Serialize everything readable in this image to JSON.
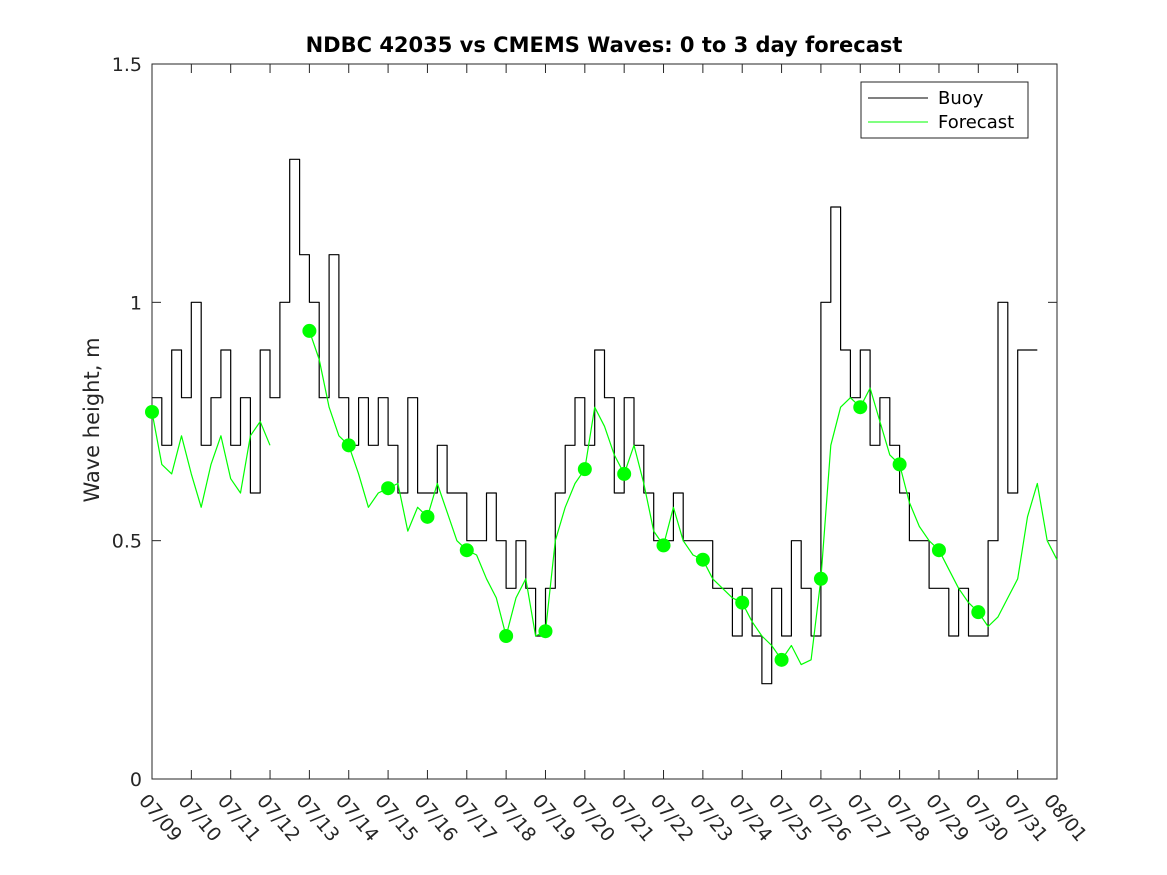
{
  "chart_data": {
    "type": "line",
    "title": "NDBC 42035 vs CMEMS Waves: 0 to 3 day forecast",
    "xlabel": "",
    "ylabel": "Wave height, m",
    "ylim": [
      0,
      1.5
    ],
    "yticks": [
      "0",
      "0.5",
      "1",
      "1.5"
    ],
    "x_range": [
      "07/09",
      "08/01"
    ],
    "xticks": [
      "07/09",
      "07/10",
      "07/11",
      "07/12",
      "07/13",
      "07/14",
      "07/15",
      "07/16",
      "07/17",
      "07/18",
      "07/19",
      "07/20",
      "07/21",
      "07/22",
      "07/23",
      "07/24",
      "07/25",
      "07/26",
      "07/27",
      "07/28",
      "07/29",
      "07/30",
      "07/31",
      "08/01"
    ],
    "grid": false,
    "legend_position": "top-right",
    "legend": [
      "Buoy",
      "Forecast"
    ],
    "colors": {
      "buoy": "#000000",
      "forecast": "#00ff00"
    },
    "series": [
      {
        "name": "Buoy",
        "x": [
          "07/09",
          "07/09 06:00",
          "07/09 12:00",
          "07/09 18:00",
          "07/10",
          "07/10 06:00",
          "07/10 12:00",
          "07/10 18:00",
          "07/11",
          "07/11 06:00",
          "07/11 12:00",
          "07/11 18:00",
          "07/12",
          "07/12 06:00",
          "07/12 12:00",
          "07/12 18:00",
          "07/13",
          "07/13 06:00",
          "07/13 12:00",
          "07/13 18:00",
          "07/14",
          "07/14 06:00",
          "07/14 12:00",
          "07/14 18:00",
          "07/15",
          "07/15 06:00",
          "07/15 12:00",
          "07/15 18:00",
          "07/16",
          "07/16 06:00",
          "07/16 12:00",
          "07/16 18:00",
          "07/17",
          "07/17 06:00",
          "07/17 12:00",
          "07/17 18:00",
          "07/18",
          "07/18 06:00",
          "07/18 12:00",
          "07/18 18:00",
          "07/19",
          "07/19 06:00",
          "07/19 12:00",
          "07/19 18:00",
          "07/20",
          "07/20 06:00",
          "07/20 12:00",
          "07/20 18:00",
          "07/21",
          "07/21 06:00",
          "07/21 12:00",
          "07/21 18:00",
          "07/22",
          "07/22 06:00",
          "07/22 12:00",
          "07/22 18:00",
          "07/23",
          "07/23 06:00",
          "07/23 12:00",
          "07/23 18:00",
          "07/24",
          "07/24 06:00",
          "07/24 12:00",
          "07/24 18:00",
          "07/25",
          "07/25 06:00",
          "07/25 12:00",
          "07/25 18:00",
          "07/26",
          "07/26 06:00",
          "07/26 12:00",
          "07/26 18:00",
          "07/27",
          "07/27 06:00",
          "07/27 12:00",
          "07/27 18:00",
          "07/28",
          "07/28 06:00",
          "07/28 12:00",
          "07/28 18:00",
          "07/29",
          "07/29 06:00",
          "07/29 12:00",
          "07/29 18:00",
          "07/30",
          "07/30 06:00",
          "07/30 12:00",
          "07/30 18:00",
          "07/31",
          "07/31 06:00",
          "07/31 12:00"
        ],
        "values": [
          0.8,
          0.7,
          0.9,
          0.8,
          1.0,
          0.7,
          0.8,
          0.9,
          0.7,
          0.8,
          0.6,
          0.9,
          0.8,
          1.0,
          1.3,
          1.1,
          1.0,
          0.8,
          1.1,
          0.8,
          0.7,
          0.8,
          0.7,
          0.8,
          0.7,
          0.6,
          0.8,
          0.6,
          0.6,
          0.7,
          0.6,
          0.6,
          0.5,
          0.5,
          0.6,
          0.5,
          0.4,
          0.5,
          0.4,
          0.3,
          0.4,
          0.6,
          0.7,
          0.8,
          0.7,
          0.9,
          0.8,
          0.6,
          0.8,
          0.7,
          0.6,
          0.5,
          0.5,
          0.6,
          0.5,
          0.5,
          0.5,
          0.4,
          0.4,
          0.3,
          0.4,
          0.3,
          0.2,
          0.4,
          0.3,
          0.5,
          0.4,
          0.3,
          1.0,
          1.2,
          0.9,
          0.8,
          0.9,
          0.7,
          0.8,
          0.7,
          0.6,
          0.5,
          0.5,
          0.4,
          0.4,
          0.3,
          0.4,
          0.3,
          0.3,
          0.5,
          1.0,
          0.6,
          0.9,
          0.9,
          0.9
        ]
      },
      {
        "name": "Forecast",
        "x": [
          "07/09",
          "07/09 06:00",
          "07/09 12:00",
          "07/09 18:00",
          "07/10",
          "07/10 06:00",
          "07/10 12:00",
          "07/10 18:00",
          "07/11",
          "07/11 06:00",
          "07/11 12:00",
          "07/11 18:00",
          "07/12",
          "07/12 06:00",
          "07/12 12:00",
          "07/12 18:00",
          "07/13",
          "07/13 06:00",
          "07/13 12:00",
          "07/13 18:00",
          "07/14",
          "07/14 06:00",
          "07/14 12:00",
          "07/14 18:00",
          "07/15",
          "07/15 06:00",
          "07/15 12:00",
          "07/15 18:00",
          "07/16",
          "07/16 06:00",
          "07/16 12:00",
          "07/16 18:00",
          "07/17",
          "07/17 06:00",
          "07/17 12:00",
          "07/17 18:00",
          "07/18",
          "07/18 06:00",
          "07/18 12:00",
          "07/18 18:00",
          "07/19",
          "07/19 06:00",
          "07/19 12:00",
          "07/19 18:00",
          "07/20",
          "07/20 06:00",
          "07/20 12:00",
          "07/20 18:00",
          "07/21",
          "07/21 06:00",
          "07/21 12:00",
          "07/21 18:00",
          "07/22",
          "07/22 06:00",
          "07/22 12:00",
          "07/22 18:00",
          "07/23",
          "07/23 06:00",
          "07/23 12:00",
          "07/23 18:00",
          "07/24",
          "07/24 06:00",
          "07/24 12:00",
          "07/24 18:00",
          "07/25",
          "07/25 06:00",
          "07/25 12:00",
          "07/25 18:00",
          "07/26",
          "07/26 06:00",
          "07/26 12:00",
          "07/26 18:00",
          "07/27",
          "07/27 06:00",
          "07/27 12:00",
          "07/27 18:00",
          "07/28",
          "07/28 06:00",
          "07/28 12:00",
          "07/28 18:00",
          "07/29",
          "07/29 06:00",
          "07/29 12:00",
          "07/29 18:00",
          "07/30",
          "07/30 06:00",
          "07/30 12:00",
          "07/30 18:00",
          "07/31",
          "07/31 06:00",
          "07/31 12:00",
          "07/31 18:00",
          "08/01"
        ],
        "values": [
          0.77,
          0.66,
          0.64,
          0.72,
          0.64,
          0.57,
          0.66,
          0.72,
          0.63,
          0.6,
          0.72,
          0.75,
          0.7,
          null,
          null,
          null,
          0.94,
          0.88,
          0.78,
          0.72,
          0.7,
          0.64,
          0.57,
          0.6,
          0.61,
          0.62,
          0.52,
          0.57,
          0.55,
          0.62,
          0.56,
          0.5,
          0.48,
          0.47,
          0.42,
          0.38,
          0.3,
          0.38,
          0.42,
          0.3,
          0.31,
          0.5,
          0.57,
          0.62,
          0.65,
          0.78,
          0.74,
          0.68,
          0.64,
          0.7,
          0.62,
          0.52,
          0.49,
          0.57,
          0.5,
          0.47,
          0.46,
          0.42,
          0.4,
          0.38,
          0.37,
          0.33,
          0.3,
          0.28,
          0.25,
          0.28,
          0.24,
          0.25,
          0.42,
          0.7,
          0.78,
          0.8,
          0.78,
          0.82,
          0.75,
          0.68,
          0.66,
          0.58,
          0.53,
          0.5,
          0.48,
          0.44,
          0.4,
          0.37,
          0.35,
          0.32,
          0.34,
          0.38,
          0.42,
          0.55,
          0.62,
          0.5,
          0.46
        ]
      }
    ],
    "markers": {
      "name": "Forecast",
      "x": [
        "07/09",
        "07/13",
        "07/14",
        "07/15",
        "07/16",
        "07/17",
        "07/18",
        "07/19",
        "07/20",
        "07/21",
        "07/22",
        "07/23",
        "07/24",
        "07/25",
        "07/26",
        "07/27",
        "07/28",
        "07/29",
        "07/30"
      ],
      "values": [
        0.77,
        0.94,
        0.7,
        0.61,
        0.55,
        0.48,
        0.3,
        0.31,
        0.65,
        0.64,
        0.49,
        0.46,
        0.37,
        0.25,
        0.42,
        0.78,
        0.66,
        0.48,
        0.35
      ]
    }
  }
}
